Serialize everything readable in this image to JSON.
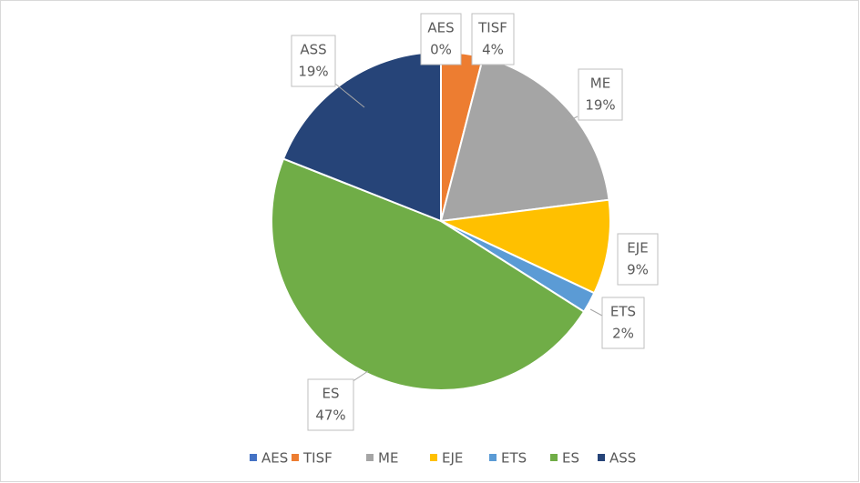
{
  "chart_data": {
    "type": "pie",
    "categories": [
      "AES",
      "TISF",
      "ME",
      "EJE",
      "ETS",
      "ES",
      "ASS"
    ],
    "values": [
      0,
      4,
      19,
      9,
      2,
      47,
      19
    ],
    "value_labels": [
      "0%",
      "4%",
      "19%",
      "9%",
      "2%",
      "47%",
      "19%"
    ],
    "colors": [
      "#4472c4",
      "#ed7d31",
      "#a5a5a5",
      "#ffc000",
      "#5b9bd5",
      "#70ad47",
      "#264478"
    ],
    "legend": "bottom"
  }
}
